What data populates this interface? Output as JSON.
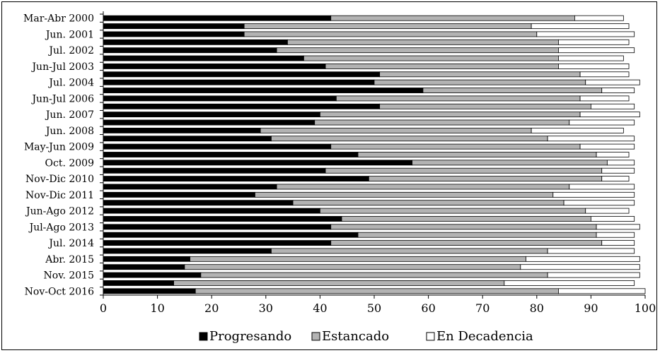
{
  "chart_data": {
    "type": "bar",
    "orientation": "horizontal",
    "stacked": true,
    "categories": [
      "Mar-Abr 2000",
      "",
      "Jun. 2001",
      "",
      "Jul. 2002",
      "",
      "Jun-Jul 2003",
      "",
      "Jul. 2004",
      "",
      "Jun-Jul 2006",
      "",
      "Jun. 2007",
      "",
      "Jun. 2008",
      "",
      "May-Jun 2009",
      "",
      "Oct. 2009",
      "",
      "Nov-Dic 2010",
      "",
      "Nov-Dic 2011",
      "",
      "Jun-Ago 2012",
      "",
      "Jul-Ago 2013",
      "",
      "Jul. 2014",
      "",
      "Abr. 2015",
      "",
      "Nov. 2015",
      "",
      "Nov-Oct 2016"
    ],
    "series": [
      {
        "name": "Progresando",
        "color": "#000000",
        "values": [
          42,
          26,
          26,
          34,
          32,
          37,
          41,
          51,
          50,
          59,
          43,
          51,
          40,
          39,
          29,
          31,
          42,
          47,
          57,
          41,
          49,
          32,
          28,
          35,
          40,
          44,
          42,
          47,
          42,
          31,
          16,
          15,
          18,
          13,
          17
        ]
      },
      {
        "name": "Estancado",
        "color": "#b3b3b3",
        "values": [
          45,
          53,
          54,
          50,
          52,
          47,
          43,
          37,
          39,
          33,
          45,
          39,
          48,
          47,
          50,
          51,
          46,
          44,
          36,
          51,
          43,
          54,
          55,
          50,
          49,
          46,
          49,
          44,
          50,
          51,
          62,
          62,
          64,
          61,
          67
        ]
      },
      {
        "name": "En Decadencia",
        "color": "#ffffff",
        "values": [
          9,
          18,
          18,
          13,
          14,
          12,
          13,
          9,
          10,
          6,
          9,
          8,
          11,
          12,
          17,
          16,
          10,
          6,
          5,
          6,
          5,
          12,
          15,
          13,
          8,
          8,
          8,
          7,
          6,
          16,
          21,
          22,
          17,
          24,
          16
        ]
      }
    ],
    "xlim": [
      0,
      100
    ],
    "xticks": [
      0,
      10,
      20,
      30,
      40,
      50,
      60,
      70,
      80,
      90,
      100
    ],
    "xlabel": "",
    "ylabel": "",
    "title": "",
    "legend_position": "bottom",
    "grid": false
  }
}
